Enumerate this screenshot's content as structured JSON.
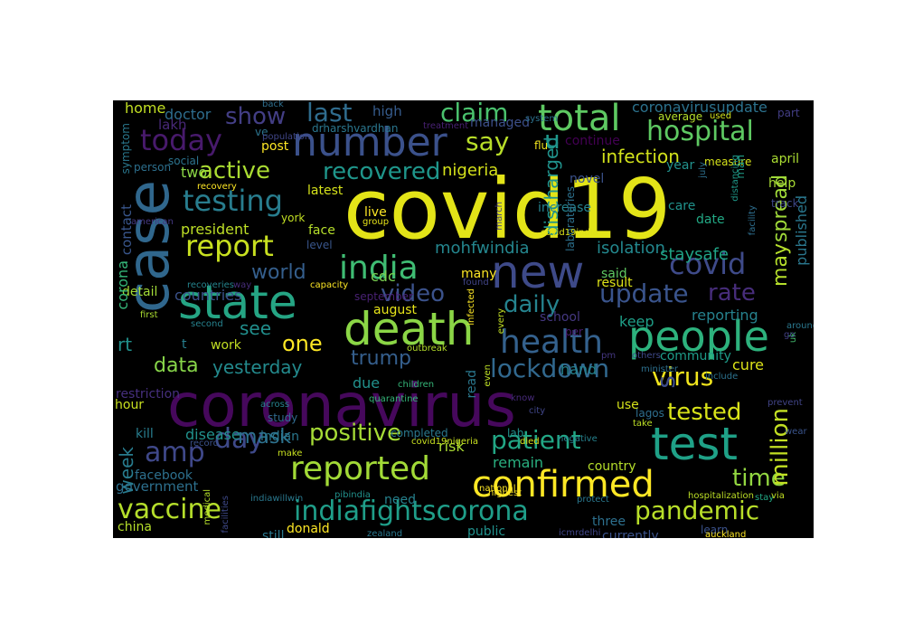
{
  "word_cloud": {
    "background": "#000000",
    "words": [
      {
        "text": "covid19",
        "color": "#e3e418"
      },
      {
        "text": "coronavirus",
        "color": "#46085c"
      },
      {
        "text": "case",
        "color": "#30678d"
      },
      {
        "text": "new",
        "color": "#3e4a89"
      },
      {
        "text": "state",
        "color": "#25a584"
      },
      {
        "text": "death",
        "color": "#8bd646"
      },
      {
        "text": "test",
        "color": "#1fa187"
      },
      {
        "text": "people",
        "color": "#2db27d"
      },
      {
        "text": "number",
        "color": "#3b518b"
      },
      {
        "text": "confirmed",
        "color": "#fde725"
      },
      {
        "text": "total",
        "color": "#5ec962"
      },
      {
        "text": "reported",
        "color": "#a2da37"
      },
      {
        "text": "health",
        "color": "#34618d"
      },
      {
        "text": "india",
        "color": "#3fbc73"
      },
      {
        "text": "today",
        "color": "#481a6c"
      },
      {
        "text": "indiafightscorona",
        "color": "#1f9e89"
      },
      {
        "text": "testing",
        "color": "#287d8e"
      },
      {
        "text": "hospital",
        "color": "#5ec962"
      },
      {
        "text": "vaccine",
        "color": "#b5de2b"
      },
      {
        "text": "report",
        "color": "#c8e020"
      },
      {
        "text": "day",
        "color": "#3e4989"
      },
      {
        "text": "covid",
        "color": "#3e4a89"
      },
      {
        "text": "amp",
        "color": "#3f4889"
      },
      {
        "text": "update",
        "color": "#3a548c"
      },
      {
        "text": "lockdown",
        "color": "#31688e"
      },
      {
        "text": "patient",
        "color": "#22a785"
      },
      {
        "text": "pandemic",
        "color": "#b8de29"
      },
      {
        "text": "positive",
        "color": "#a5db36"
      },
      {
        "text": "claim",
        "color": "#4ac16d"
      },
      {
        "text": "say",
        "color": "#b8de29"
      },
      {
        "text": "u",
        "color": "#1f998a"
      },
      {
        "text": "last",
        "color": "#2f6c8e"
      },
      {
        "text": "show",
        "color": "#433e85"
      },
      {
        "text": "active",
        "color": "#aadc32"
      },
      {
        "text": "recovered",
        "color": "#1f968b"
      },
      {
        "text": "video",
        "color": "#3b528b"
      },
      {
        "text": "daily",
        "color": "#25838e"
      },
      {
        "text": "rate",
        "color": "#472d7b"
      },
      {
        "text": "virus",
        "color": "#f1e51d"
      },
      {
        "text": "s",
        "color": "#3e4c8a"
      },
      {
        "text": "tested",
        "color": "#d8e219"
      },
      {
        "text": "time",
        "color": "#93d741"
      },
      {
        "text": "million",
        "color": "#c2df23"
      },
      {
        "text": "one",
        "color": "#fde725"
      },
      {
        "text": "trump",
        "color": "#355f8d"
      },
      {
        "text": "world",
        "color": "#355f8d"
      },
      {
        "text": "spread",
        "color": "#a0da39"
      },
      {
        "text": "may",
        "color": "#b5de2b"
      },
      {
        "text": "mask",
        "color": "#2d718e"
      },
      {
        "text": "data",
        "color": "#87d549"
      },
      {
        "text": "yesterday",
        "color": "#238a8d"
      },
      {
        "text": "week",
        "color": "#287c8e"
      },
      {
        "text": "see",
        "color": "#218f8d"
      },
      {
        "text": "rt",
        "color": "#21918c"
      },
      {
        "text": "discharged",
        "color": "#20928c"
      },
      {
        "text": "infection",
        "color": "#d2e21b"
      },
      {
        "text": "isolation",
        "color": "#23888e"
      },
      {
        "text": "mohfwindia",
        "color": "#24868e"
      },
      {
        "text": "staysafe",
        "color": "#20a486"
      },
      {
        "text": "coronavirusupdate",
        "color": "#2c728e"
      },
      {
        "text": "doctor",
        "color": "#2e6d8e"
      },
      {
        "text": "home",
        "color": "#c2df23"
      },
      {
        "text": "lakh",
        "color": "#482878"
      },
      {
        "text": "high",
        "color": "#365c8d"
      },
      {
        "text": "post",
        "color": "#fde725"
      },
      {
        "text": "nigeria",
        "color": "#d5e21a"
      },
      {
        "text": "continue",
        "color": "#440154"
      },
      {
        "text": "managed",
        "color": "#3c4f8a"
      },
      {
        "text": "drharshvardhan",
        "color": "#2a768e"
      },
      {
        "text": "treatment",
        "color": "#482173"
      },
      {
        "text": "system",
        "color": "#2c728e"
      },
      {
        "text": "ve",
        "color": "#2c738e"
      },
      {
        "text": "back",
        "color": "#2e6e8e"
      },
      {
        "text": "population",
        "color": "#404688"
      },
      {
        "text": "two",
        "color": "#8bd646"
      },
      {
        "text": "symptom",
        "color": "#2a788e"
      },
      {
        "text": "social",
        "color": "#2c738e"
      },
      {
        "text": "person",
        "color": "#2d708e"
      },
      {
        "text": "recovery",
        "color": "#fde725"
      },
      {
        "text": "novel",
        "color": "#3b528b"
      },
      {
        "text": "year",
        "color": "#21918c"
      },
      {
        "text": "measure",
        "color": "#d5e21a"
      },
      {
        "text": "average",
        "color": "#b5de2b"
      },
      {
        "text": "used",
        "color": "#d2e21b"
      },
      {
        "text": "part",
        "color": "#433e85"
      },
      {
        "text": "april",
        "color": "#aadc32"
      },
      {
        "text": "help",
        "color": "#a8db34"
      },
      {
        "text": "track",
        "color": "#3e4989"
      },
      {
        "text": "man",
        "color": "#1f9e89"
      },
      {
        "text": "distancing",
        "color": "#1f9a8a"
      },
      {
        "text": "date",
        "color": "#22a884"
      },
      {
        "text": "care",
        "color": "#20928c"
      },
      {
        "text": "published",
        "color": "#2a778e"
      },
      {
        "text": "increase",
        "color": "#26828e"
      },
      {
        "text": "laboratories",
        "color": "#2d718e"
      },
      {
        "text": "facility",
        "color": "#2e6e8e"
      },
      {
        "text": "july",
        "color": "#2d708e"
      },
      {
        "text": "live",
        "color": "#fde725"
      },
      {
        "text": "group",
        "color": "#e7e419"
      },
      {
        "text": "march",
        "color": "#433e85"
      },
      {
        "text": "flu",
        "color": "#f1e51d"
      },
      {
        "text": "covid19india",
        "color": "#dde318"
      },
      {
        "text": "latest",
        "color": "#d5e21a"
      },
      {
        "text": "york",
        "color": "#c2df23"
      },
      {
        "text": "american",
        "color": "#453882"
      },
      {
        "text": "contact",
        "color": "#39568c"
      },
      {
        "text": "president",
        "color": "#bddf26"
      },
      {
        "text": "level",
        "color": "#39568c"
      },
      {
        "text": "face",
        "color": "#b5de2b"
      },
      {
        "text": "cdc",
        "color": "#7ad151"
      },
      {
        "text": "many",
        "color": "#fde725"
      },
      {
        "text": "said",
        "color": "#5ec962"
      },
      {
        "text": "result",
        "color": "#dde318"
      },
      {
        "text": "detail",
        "color": "#a2da37"
      },
      {
        "text": "countries",
        "color": "#3b528b"
      },
      {
        "text": "corona",
        "color": "#35b779"
      },
      {
        "text": "recoveries",
        "color": "#25848e"
      },
      {
        "text": "way",
        "color": "#472d7b"
      },
      {
        "text": "capacity",
        "color": "#fde725"
      },
      {
        "text": "september",
        "color": "#482173"
      },
      {
        "text": "found",
        "color": "#414487"
      },
      {
        "text": "august",
        "color": "#e7e419"
      },
      {
        "text": "infected",
        "color": "#fde725"
      },
      {
        "text": "school",
        "color": "#453882"
      },
      {
        "text": "per",
        "color": "#481c6e"
      },
      {
        "text": "keep",
        "color": "#1f9f88"
      },
      {
        "text": "reporting",
        "color": "#26828e"
      },
      {
        "text": "first",
        "color": "#aadc32"
      },
      {
        "text": "second",
        "color": "#26828e"
      },
      {
        "text": "every",
        "color": "#c2df23"
      },
      {
        "text": "uk",
        "color": "#44bf70"
      },
      {
        "text": "around",
        "color": "#2a788e"
      },
      {
        "text": "go",
        "color": "#424086"
      },
      {
        "text": "t",
        "color": "#277f8e"
      },
      {
        "text": "work",
        "color": "#c2df23"
      },
      {
        "text": "community",
        "color": "#1e9c89"
      },
      {
        "text": "cure",
        "color": "#dde318"
      },
      {
        "text": "outbreak",
        "color": "#b5de2b"
      },
      {
        "text": "read",
        "color": "#2a788e"
      },
      {
        "text": "due",
        "color": "#21918c"
      },
      {
        "text": "quarantine",
        "color": "#35b779"
      },
      {
        "text": "children",
        "color": "#35b779"
      },
      {
        "text": "even",
        "color": "#bddf26"
      },
      {
        "text": "hand",
        "color": "#26828e"
      },
      {
        "text": "pm",
        "color": "#453882"
      },
      {
        "text": "others",
        "color": "#3e4989"
      },
      {
        "text": "minister",
        "color": "#2d708e"
      },
      {
        "text": "include",
        "color": "#2c728e"
      },
      {
        "text": "restriction",
        "color": "#462f7e"
      },
      {
        "text": "hour",
        "color": "#c8e020"
      },
      {
        "text": "across",
        "color": "#26828e"
      },
      {
        "text": "study",
        "color": "#306a8e"
      },
      {
        "text": "know",
        "color": "#472a7a"
      },
      {
        "text": "city",
        "color": "#404688"
      },
      {
        "text": "lagos",
        "color": "#2e6e8e"
      },
      {
        "text": "use",
        "color": "#d5e21a"
      },
      {
        "text": "take",
        "color": "#bddf26"
      },
      {
        "text": "prevent",
        "color": "#414487"
      },
      {
        "text": "wear",
        "color": "#3a548c"
      },
      {
        "text": "kill",
        "color": "#287d8e"
      },
      {
        "text": "disease",
        "color": "#21918c"
      },
      {
        "text": "risk",
        "color": "#aadc32"
      },
      {
        "text": "lab",
        "color": "#21918c"
      },
      {
        "text": "died",
        "color": "#d8e219"
      },
      {
        "text": "record",
        "color": "#3b528b"
      },
      {
        "text": "indian",
        "color": "#2a788e"
      },
      {
        "text": "completed",
        "color": "#2a788e"
      },
      {
        "text": "covid19nigeria",
        "color": "#c8e020"
      },
      {
        "text": "negative",
        "color": "#26828e"
      },
      {
        "text": "highest",
        "color": "#fde725"
      },
      {
        "text": "make",
        "color": "#c8e020"
      },
      {
        "text": "remain",
        "color": "#29af7f"
      },
      {
        "text": "facebook",
        "color": "#2d708e"
      },
      {
        "text": "country",
        "color": "#b5de2b"
      },
      {
        "text": "government",
        "color": "#2d708e"
      },
      {
        "text": "protect",
        "color": "#2a788e"
      },
      {
        "text": "indiawillwin",
        "color": "#2a788e"
      },
      {
        "text": "medical",
        "color": "#b5de2b"
      },
      {
        "text": "pibindia",
        "color": "#21918c"
      },
      {
        "text": "national",
        "color": "#fde725"
      },
      {
        "text": "need",
        "color": "#26828e"
      },
      {
        "text": "stay",
        "color": "#22a884"
      },
      {
        "text": "via",
        "color": "#c2df23"
      },
      {
        "text": "hospitalization",
        "color": "#bddf26"
      },
      {
        "text": "china",
        "color": "#b5de2b"
      },
      {
        "text": "facilities",
        "color": "#3e4989"
      },
      {
        "text": "still",
        "color": "#2a788e"
      },
      {
        "text": "donald",
        "color": "#fde725"
      },
      {
        "text": "zealand",
        "color": "#2a788e"
      },
      {
        "text": "public",
        "color": "#21918c"
      },
      {
        "text": "three",
        "color": "#2d708e"
      },
      {
        "text": "icmrdelhi",
        "color": "#404688"
      },
      {
        "text": "currently",
        "color": "#3b528b"
      },
      {
        "text": "learn",
        "color": "#3b528b"
      },
      {
        "text": "auckland",
        "color": "#fde725"
      }
    ]
  }
}
